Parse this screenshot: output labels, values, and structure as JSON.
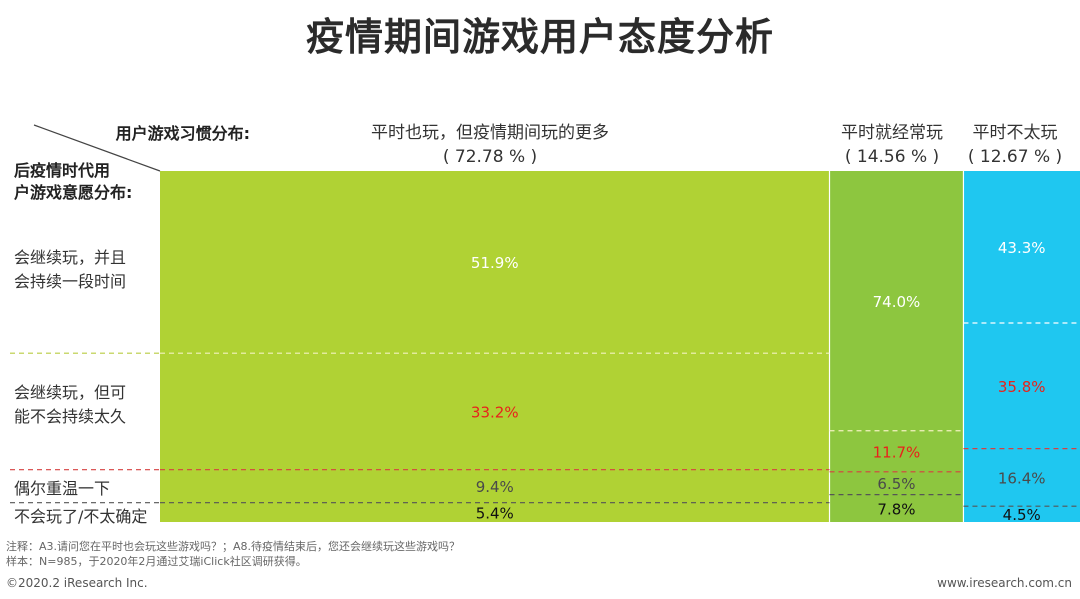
{
  "title": "疫情期间游戏用户态度分析",
  "header": {
    "col_axis_label": "用户游戏习惯分布:",
    "row_axis_label_line1": "后疫情时代用",
    "row_axis_label_line2": "户游戏意愿分布:"
  },
  "rows": [
    {
      "label_line1": "会继续玩，并且",
      "label_line2": "会持续一段时间"
    },
    {
      "label_line1": "会继续玩，但可",
      "label_line2": "能不会持续太久"
    },
    {
      "label_line1": "偶尔重温一下",
      "label_line2": ""
    },
    {
      "label_line1": "不会玩了/不太确定",
      "label_line2": ""
    }
  ],
  "columns": [
    {
      "name": "平时也玩，但疫情期间玩的更多",
      "share_label": "( 72.78 % )"
    },
    {
      "name": "平时就经常玩",
      "share_label": "( 14.56 % )"
    },
    {
      "name": "平时不太玩",
      "share_label": "( 12.67 % )"
    }
  ],
  "notes": {
    "line1": "注释：A3.请问您在平时也会玩这些游戏吗？；A8.待疫情结束后，您还会继续玩这些游戏吗？",
    "line2": "样本：N=985，于2020年2月通过艾瑞iClick社区调研获得。"
  },
  "footer": {
    "left": "©2020.2 iResearch Inc.",
    "right": "www.iresearch.com.cn"
  },
  "colors": {
    "col1": "#B0D234",
    "col2": "#8DC63F",
    "col3": "#1FC7F0",
    "label_default": "#ffffff",
    "label_red": "#E8221B",
    "label_gray": "#4a4a4a",
    "label_black": "#111111"
  },
  "chart_data": {
    "type": "bar",
    "subtype": "marimekko",
    "categories": [
      "平时也玩，但疫情期间玩的更多",
      "平时就经常玩",
      "平时不太玩"
    ],
    "widths": [
      72.78,
      14.56,
      12.67
    ],
    "series": [
      {
        "name": "会继续玩，并且会持续一段时间",
        "values": [
          51.9,
          74.0,
          43.3
        ],
        "labels": [
          "51.9%",
          "74.0%",
          "43.3%"
        ]
      },
      {
        "name": "会继续玩，但可能不会持续太久",
        "values": [
          33.2,
          11.7,
          35.8
        ],
        "labels": [
          "33.2%",
          "11.7%",
          "35.8%"
        ]
      },
      {
        "name": "偶尔重温一下",
        "values": [
          9.4,
          6.5,
          16.4
        ],
        "labels": [
          "9.4%",
          "6.5%",
          "16.4%"
        ]
      },
      {
        "name": "不会玩了/不太确定",
        "values": [
          5.4,
          7.8,
          4.5
        ],
        "labels": [
          "5.4%",
          "7.8%",
          "4.5%"
        ]
      }
    ],
    "ylim": [
      0,
      100
    ]
  }
}
